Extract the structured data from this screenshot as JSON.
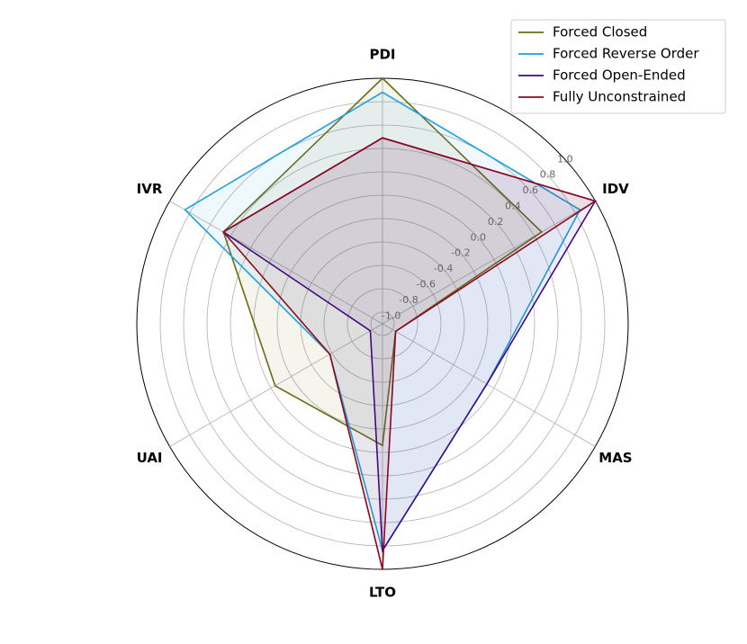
{
  "chart_data": {
    "type": "radar",
    "categories": [
      "PDI",
      "IDV",
      "MAS",
      "LTO",
      "UAI",
      "IVR"
    ],
    "series": [
      {
        "name": "Forced Closed",
        "color": "#6b6b12",
        "values": [
          1.0,
          0.47,
          -0.97,
          -0.06,
          -0.04,
          0.47
        ]
      },
      {
        "name": "Forced Reverse Order",
        "color": "#1ba1e2",
        "values": [
          0.88,
          0.85,
          -0.07,
          0.84,
          -0.58,
          0.85
        ]
      },
      {
        "name": "Forced Open-Ended",
        "color": "#3d0a8a",
        "values": [
          0.49,
          1.0,
          -0.07,
          0.84,
          -0.98,
          0.47
        ]
      },
      {
        "name": "Fully Unconstrained",
        "color": "#8b0a1e",
        "values": [
          0.49,
          1.0,
          -0.97,
          1.0,
          -0.58,
          0.47
        ]
      }
    ],
    "ylim": [
      -1.1,
      1.0
    ],
    "yticks": [
      {
        "value": -1.0,
        "label": "-1.0"
      },
      -0.8,
      -0.6,
      -0.4,
      -0.2,
      {
        "value": 0.0,
        "label": "0.0"
      },
      0.2,
      0.4,
      0.6,
      0.8,
      {
        "value": 1.0,
        "label": "1.0"
      }
    ],
    "grid": true,
    "legend": "upper right"
  }
}
